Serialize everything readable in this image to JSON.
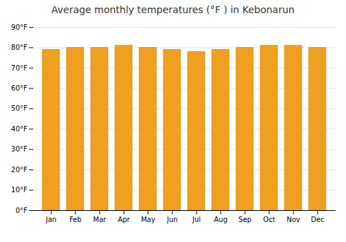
{
  "chart_data": {
    "type": "bar",
    "title": "Average monthly temperatures (°F ) in Kebonarun",
    "categories": [
      "Jan",
      "Feb",
      "Mar",
      "Apr",
      "May",
      "Jun",
      "Jul",
      "Aug",
      "Sep",
      "Oct",
      "Nov",
      "Dec"
    ],
    "values": [
      79,
      80,
      80,
      81,
      80,
      79,
      78,
      79,
      80,
      81,
      81,
      80
    ],
    "color": "#F0A020",
    "ylim": [
      0,
      90
    ],
    "yticks": [
      {
        "value": 0,
        "label": "0°F"
      },
      {
        "value": 10,
        "label": "10°F"
      },
      {
        "value": 20,
        "label": "20°F"
      },
      {
        "value": 30,
        "label": "30°F"
      },
      {
        "value": 40,
        "label": "40°F"
      },
      {
        "value": 50,
        "label": "50°F"
      },
      {
        "value": 60,
        "label": "60°F"
      },
      {
        "value": 70,
        "label": "70°F"
      },
      {
        "value": 80,
        "label": "80°F"
      },
      {
        "value": 90,
        "label": "90°F"
      }
    ],
    "grid": true
  }
}
